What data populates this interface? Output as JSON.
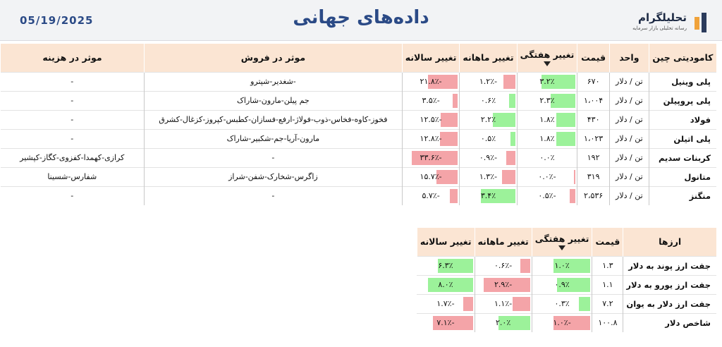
{
  "header": {
    "date": "05/19/2025",
    "title": "داده‌های جهانی",
    "logo_name": "تحلیلگرام",
    "logo_tagline": "رسانه تحلیلی بازار سرمایه"
  },
  "colors": {
    "positive": "#9cf29a",
    "negative": "#f4a4a8",
    "header_bg": "#fbe5d3",
    "title": "#2b4a86"
  },
  "commodities": {
    "headers": {
      "name": "کامودیتی چین",
      "unit": "واحد",
      "price": "قیمت",
      "weekly": "تغییر هفتگی",
      "monthly": "تغییر ماهانه",
      "yearly": "تغییر سالانه",
      "sales": "موثر در فروش",
      "cost": "موثر در هزینه"
    },
    "sort_icon": "sort-down-icon",
    "rows": [
      {
        "name": "پلی وینیل",
        "unit": "تن / دلار",
        "price": "۶۷۰",
        "weekly": "۳.۲٪",
        "weekly_value": 3.2,
        "monthly": "-۱.۲٪",
        "monthly_value": -1.2,
        "yearly": "-۲۱.۸٪",
        "yearly_value": -21.8,
        "sales": "-شغدیر-شپترو",
        "cost": "-"
      },
      {
        "name": "پلی پروپیلن",
        "unit": "تن / دلار",
        "price": "۱،۰۰۴",
        "weekly": "۲.۳٪",
        "weekly_value": 2.3,
        "monthly": "۰.۶٪",
        "monthly_value": 0.6,
        "yearly": "-۳.۵٪",
        "yearly_value": -3.5,
        "sales": "جم پیلن-مارون-شاراک",
        "cost": "-"
      },
      {
        "name": "فولاد",
        "unit": "تن / دلار",
        "price": "۴۳۰",
        "weekly": "۱.۸٪",
        "weekly_value": 1.8,
        "monthly": "۲.۲٪",
        "monthly_value": 2.2,
        "yearly": "-۱۲.۵٪",
        "yearly_value": -12.5,
        "sales": "فخوز-کاوه-فخاس-ذوب-فولاژ-ارفع-فسازان-کطبس-کپروز-کزغال-کشرق",
        "cost": "-"
      },
      {
        "name": "پلی اتیلن",
        "unit": "تن / دلار",
        "price": "۱،۰۲۳",
        "weekly": "۱.۸٪",
        "weekly_value": 1.8,
        "monthly": "۰.۵٪",
        "monthly_value": 0.5,
        "yearly": "-۱۲.۸٪",
        "yearly_value": -12.8,
        "sales": "مارون-آریا-جم-شکبیر-شاراک",
        "cost": "-"
      },
      {
        "name": "کربنات سدیم",
        "unit": "تن / دلار",
        "price": "۱۹۲",
        "weekly": "۰.۰٪",
        "weekly_value": 0.0,
        "monthly": "-۰.۹٪",
        "monthly_value": -0.9,
        "yearly": "-۳۳.۶٪",
        "yearly_value": -33.6,
        "sales": "-",
        "cost": "کرازی-کهمدا-کفزوی-کگاز-کپشیر"
      },
      {
        "name": "متانول",
        "unit": "تن / دلار",
        "price": "۳۱۹",
        "weekly": "-۰.۰٪",
        "weekly_value": -0.02,
        "monthly": "-۱.۳٪",
        "monthly_value": -1.3,
        "yearly": "-۱۵.۷٪",
        "yearly_value": -15.7,
        "sales": "زاگرس-شخارک-شفن-شراز",
        "cost": "شفارس-شسینا"
      },
      {
        "name": "منگنز",
        "unit": "تن / دلار",
        "price": "۲،۵۳۶",
        "weekly": "-۰.۵٪",
        "weekly_value": -0.5,
        "monthly": "۳.۴٪",
        "monthly_value": 3.4,
        "yearly": "-۵.۷٪",
        "yearly_value": -5.7,
        "sales": "-",
        "cost": "-"
      }
    ]
  },
  "currencies": {
    "headers": {
      "name": "ارزها",
      "price": "قیمت",
      "weekly": "تغییر هفتگی",
      "monthly": "تغییر ماهانه",
      "yearly": "تغییر سالانه"
    },
    "rows": [
      {
        "name": "جفت ارز پوند به دلار",
        "price": "۱.۳",
        "weekly": "۱.۰٪",
        "weekly_value": 1.0,
        "monthly": "-۰.۶٪",
        "monthly_value": -0.6,
        "yearly": "۶.۳٪",
        "yearly_value": 6.3
      },
      {
        "name": "جفت ارز یورو به دلار",
        "price": "۱.۱",
        "weekly": "۰.۹٪",
        "weekly_value": 0.9,
        "monthly": "-۲.۹٪",
        "monthly_value": -2.9,
        "yearly": "۸.۰٪",
        "yearly_value": 8.0
      },
      {
        "name": "جفت ارز دلار به یوان",
        "price": "۷.۲",
        "weekly": "۰.۳٪",
        "weekly_value": 0.3,
        "monthly": "-۱.۱٪",
        "monthly_value": -1.1,
        "yearly": "-۱.۷٪",
        "yearly_value": -1.7
      },
      {
        "name": "شاخص دلار",
        "price": "۱۰۰.۸",
        "weekly": "-۱.۰٪",
        "weekly_value": -1.0,
        "monthly": "۲.۰٪",
        "monthly_value": 2.0,
        "yearly": "-۷.۱٪",
        "yearly_value": -7.1
      }
    ]
  }
}
